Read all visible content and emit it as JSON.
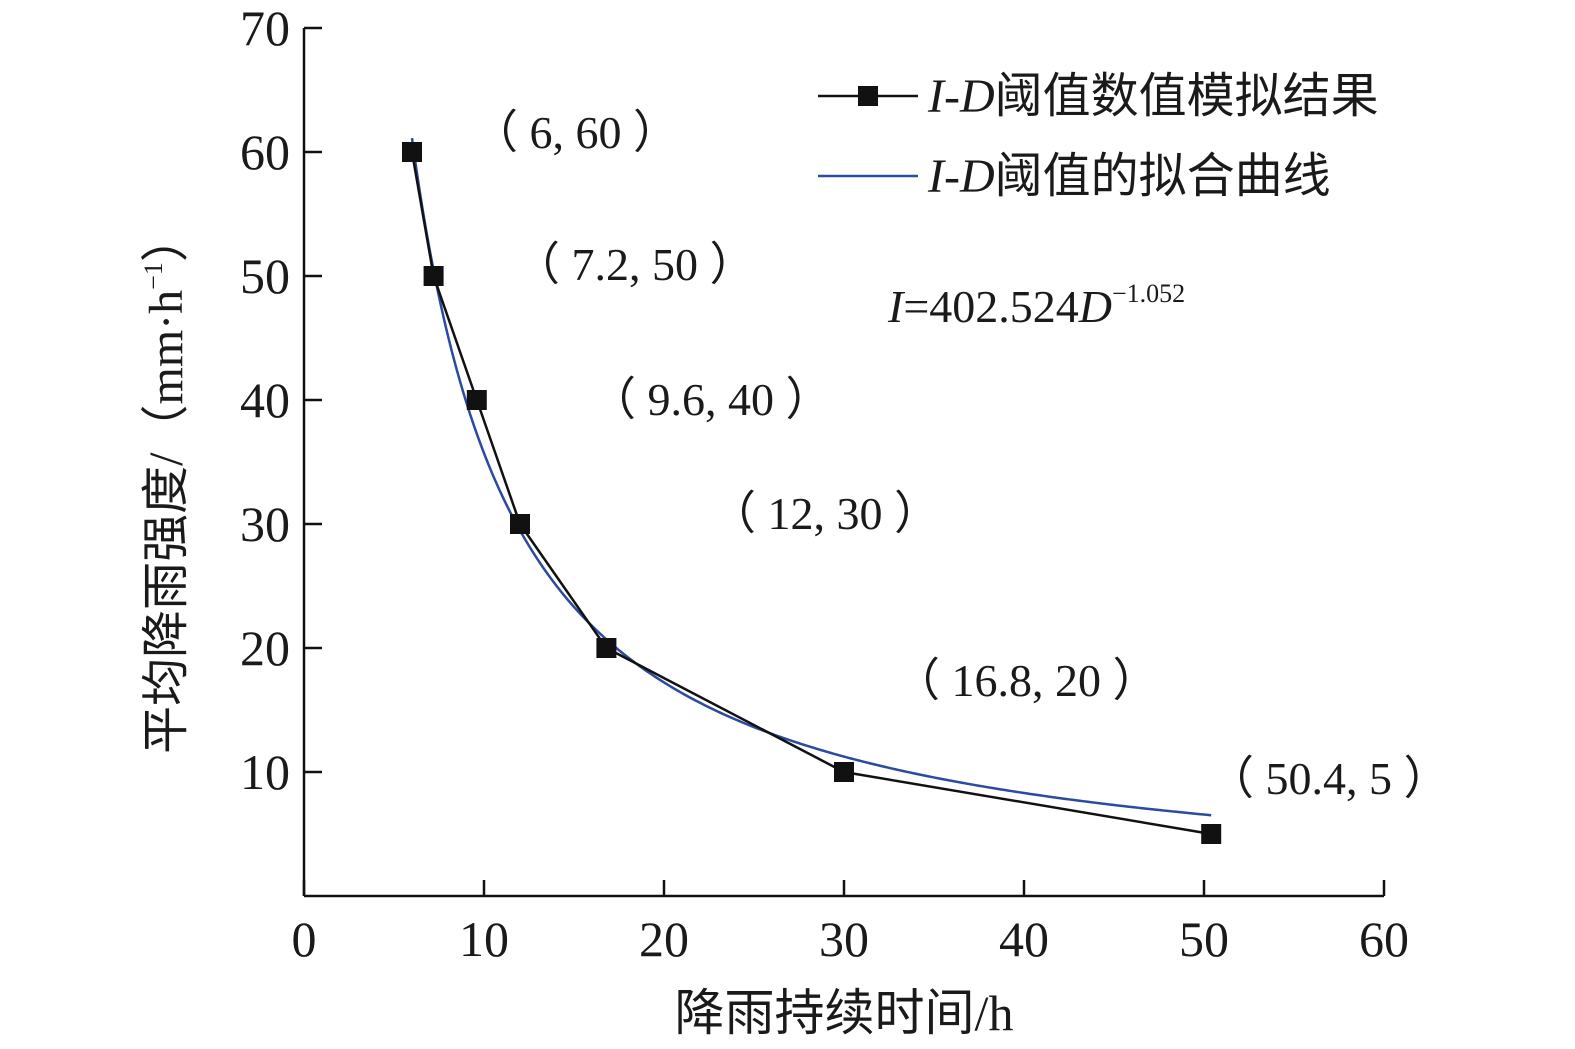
{
  "chart_data": {
    "type": "line",
    "xlabel": "降雨持续时间/h",
    "ylabel": "平均降雨强度/（mm·h",
    "ylabel_sup": "−1",
    "ylabel_close": "）",
    "xlim": [
      0,
      60
    ],
    "ylim": [
      0,
      70
    ],
    "x_ticks": [
      "0",
      "10",
      "20",
      "30",
      "40",
      "50",
      "60"
    ],
    "y_ticks": [
      "10",
      "20",
      "30",
      "40",
      "50",
      "60",
      "70"
    ],
    "grid": false,
    "legend_position": "top-right",
    "series": [
      {
        "name": "I-D阈值数值模拟结果",
        "legend_italic": "I-D",
        "legend_text": "阈值数值模拟结果",
        "style": "line-square-markers",
        "color": "#111111",
        "x": [
          6,
          7.2,
          9.6,
          12,
          16.8,
          30,
          50.4
        ],
        "y": [
          60,
          50,
          40,
          30,
          20,
          10,
          5
        ]
      },
      {
        "name": "I-D阈值的拟合曲线",
        "legend_italic": "I-D",
        "legend_text": "阈值的拟合曲线",
        "style": "smooth-line",
        "color": "#2b4aa0",
        "x_range": [
          6,
          50.4
        ],
        "coefficient": 402.524,
        "exponent": -1.052
      }
    ],
    "point_labels": [
      "（ 6, 60 ）",
      "（ 7.2, 50 ）",
      "（ 9.6, 40 ）",
      "（ 12, 30 ）",
      "（ 16.8, 20 ）",
      "（ 50.4, 5 ）"
    ],
    "equation": {
      "lhs": "I",
      "mid": "=402.524",
      "var": "D",
      "exp": "−1.052"
    }
  }
}
